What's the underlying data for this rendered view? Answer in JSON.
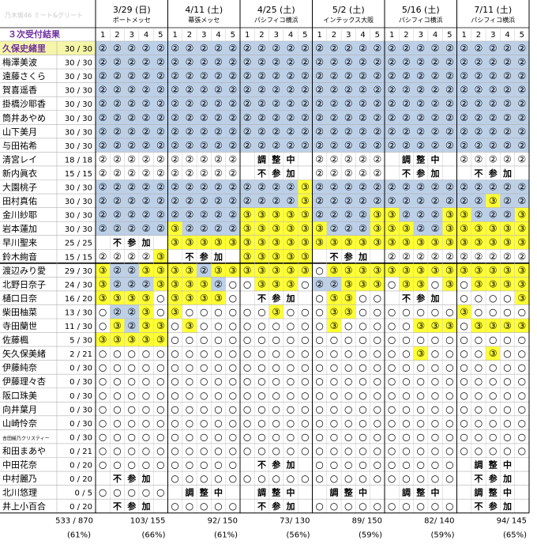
{
  "header": {
    "corner_text": "乃木坂46 ミート&グリート",
    "title": "３次受付結果",
    "slot_labels": [
      "1",
      "2",
      "3",
      "4",
      "5"
    ]
  },
  "events": [
    {
      "date": "3/29 (日)",
      "venue": "ポートメッセ",
      "sum": "103/ 155",
      "pct": "(66%)"
    },
    {
      "date": "4/11 (土)",
      "venue": "幕張メッセ",
      "sum": "92/ 150",
      "pct": "(61%)"
    },
    {
      "date": "4/25 (土)",
      "venue": "パシフィコ横浜",
      "sum": "73/ 130",
      "pct": "(56%)"
    },
    {
      "date": "5/2 (土)",
      "venue": "インテックス大阪",
      "sum": "89/ 150",
      "pct": "(59%)"
    },
    {
      "date": "5/16 (土)",
      "venue": "パシフィコ横浜",
      "sum": "82/ 140",
      "pct": "(59%)"
    },
    {
      "date": "7/11 (土)",
      "venue": "パシフィコ横浜",
      "sum": "94/ 145",
      "pct": "(65%)"
    }
  ],
  "totals": {
    "sum": "533 / 870",
    "pct": "(61%)"
  },
  "legend": {
    "sold_out_2": "②",
    "sold_out_3": "③",
    "open": "○",
    "absent_chars": [
      "不",
      "参",
      "加"
    ],
    "adjusting_chars": [
      "調",
      "整",
      "中"
    ]
  },
  "colors": {
    "blue_cell": "#bcd0e8",
    "yellow_cell": "#ffff33",
    "name_highlight": "#f6f6a8",
    "purple_title": "#7030a0"
  },
  "members": [
    {
      "name": "久保史緒里",
      "score": "30 / 30",
      "highlight": true,
      "cells": [
        "B2B2B2B2B2",
        "B2B2B2B2B2",
        "B2B2B2B2B2",
        "B2B2B2B2B2",
        "B2B2B2B2B2",
        "B2B2B2B2B2"
      ]
    },
    {
      "name": "梅澤美波",
      "score": "30 / 30",
      "cells": [
        "B2B2B2B2B2",
        "B2B2B2B2B2",
        "B2B2B2B2B2",
        "B2B2B2B2B2",
        "B2B2B2B2B2",
        "B2B2B2B2B2"
      ]
    },
    {
      "name": "遠藤さくら",
      "score": "30 / 30",
      "cells": [
        "B2B2B2B2B2",
        "B2B2B2B2B2",
        "B2B2B2B2B2",
        "B2B2B2B2B2",
        "B2B2B2B2B2",
        "B2B2B2B2B2"
      ]
    },
    {
      "name": "賀喜遥香",
      "score": "30 / 30",
      "cells": [
        "B2B2B2B2B2",
        "B2B2B2B2B2",
        "B2B2B2B2B2",
        "B2B2B2B2B2",
        "B2B2B2B2B2",
        "B2B2B2B2B2"
      ]
    },
    {
      "name": "掛橋沙耶香",
      "score": "30 / 30",
      "cells": [
        "B2B2B2B2B2",
        "B2B2B2B2B2",
        "B2B2B2B2B2",
        "B2B2B2B2B2",
        "B2B2B2B2B2",
        "B2B2B2B2B2"
      ]
    },
    {
      "name": "筒井あやめ",
      "score": "30 / 30",
      "cells": [
        "B2B2B2B2B2",
        "B2B2B2B2B2",
        "B2B2B2B2B2",
        "B2B2B2B2B2",
        "B2B2B2B2B2",
        "B2B2B2B2B2"
      ]
    },
    {
      "name": "山下美月",
      "score": "30 / 30",
      "cells": [
        "B2B2B2B2B2",
        "B2B2B2B2B2",
        "B2B2B2B2B2",
        "B2B2B2B2B2",
        "B2B2B2B2B2",
        "B2B2B2B2B2"
      ]
    },
    {
      "name": "与田祐希",
      "score": "30 / 30",
      "cells": [
        "B2B2B2B2B2",
        "B2B2B2B2B2",
        "B2B2B2B2B2",
        "B2B2B2B2B2",
        "B2B2B2B2B2",
        "B2B2B2B2B2"
      ]
    },
    {
      "name": "清宮レイ",
      "score": "18 / 18",
      "cells": [
        "W2W2W2W2W2",
        "W2W2W2W2W2",
        "-- -- 調 整 中",
        "W2W2W2W2W2",
        "-- -- 調 整 中",
        "W2W2W2W2W2"
      ]
    },
    {
      "name": "新内眞衣",
      "score": "15 / 15",
      "cells": [
        "W2W2W2W2W2",
        "W2W2W2W2W2",
        "-- -- 不 参 加",
        "W2W2W2W2W2",
        "-- -- 不 参 加",
        "-- -- 不 参 加"
      ]
    },
    {
      "name": "大園桃子",
      "score": "30 / 30",
      "cells": [
        "B2B2B2B2B2",
        "B2B2B2B2B2",
        "B2B2B2B2Y3",
        "B2B2B2B2B2",
        "B2B2B2B2B2",
        "B2B2B2B2B2"
      ]
    },
    {
      "name": "田村真佑",
      "score": "30 / 30",
      "cells": [
        "B2B2B2B2B2",
        "B2B2B2B2B2",
        "B2B2B2B2Y3",
        "B2B2B2B2B2",
        "B2B2B2B2B2",
        "B2B2Y3B2B2"
      ]
    },
    {
      "name": "金川紗耶",
      "score": "30 / 30",
      "cells": [
        "B2B2B2B2B2",
        "B2B2B2B2B2",
        "Y3Y3Y3Y3Y3",
        "B2B2B2B2Y3",
        "Y3B2B2B2Y3",
        "Y3B2B2B2Y3"
      ]
    },
    {
      "name": "岩本蓮加",
      "score": "30 / 30",
      "cells": [
        "B2B2B2B2B2",
        "Y3B2B2B2B2",
        "Y3Y3Y3Y3Y3",
        "Y3B2B2B2Y3",
        "Y3Y3B2B2Y3",
        "Y3Y3Y3Y3Y3"
      ]
    },
    {
      "name": "早川聖来",
      "score": "25 / 25",
      "cells": [
        "-- -- 不 参 加",
        "Y3Y3Y3Y3Y3",
        "Y3Y3Y3Y3Y3",
        "Y3Y3Y3Y3Y3",
        "Y3Y3Y3Y3Y3",
        "Y3Y3Y3Y3Y3"
      ]
    },
    {
      "name": "鈴木絢音",
      "score": "15 / 15",
      "cells": [
        "W2W2W2W2Y3",
        "-- -- 不 参 加",
        "Y3Y3Y3Y3Y3",
        "-- -- 不 参 加",
        "W2W2W2W2W2",
        "W2W2W2W2W2"
      ]
    },
    {
      "name": "渡辺みり愛",
      "score": "29 / 30",
      "separator": true,
      "cells": [
        "Y3B2B2Y3Y3",
        "Y3Y3B2Y3Y3",
        "Y3Y3Y3Y3Y3",
        "OOY3Y3Y3Y3",
        "Y3Y3Y3Y3Y3",
        "Y3Y3Y3Y3Y3"
      ]
    },
    {
      "name": "北野日奈子",
      "score": "24 / 30",
      "cells": [
        "Y3B2B2B2Y3",
        "Y3Y3Y3B2OO",
        "OOY3Y3Y3OO",
        "B2B2Y3Y3Y3",
        "OOY3Y3OOY3",
        "OOY3Y3Y3Y3"
      ]
    },
    {
      "name": "樋口日奈",
      "score": "16 / 20",
      "cells": [
        "Y3Y3Y3Y3OO",
        "Y3Y3Y3Y3OO",
        "-- -- 不 参 加",
        "OOY3Y3OOOO",
        "-- -- 不 参 加",
        "OOOOOOOOY3"
      ]
    },
    {
      "name": "柴田柚菜",
      "score": "13 / 30",
      "cells": [
        "OOB2B2Y3OO",
        "Y3OOOOOOOO",
        "OOOOY3OOOO",
        "OOY3Y3OOOO",
        "OOOOOOOOOO",
        "Y3OOOOOOOO"
      ]
    },
    {
      "name": "寺田蘭世",
      "score": "11 / 30",
      "cells": [
        "OOY3B2Y3Y3",
        "OOY3OOOOOO",
        "OOOOOOOOOO",
        "OOY3OOOOOO",
        "OOOOY3Y3Y3",
        "OOY3Y3Y3Y3"
      ]
    },
    {
      "name": "佐藤楓",
      "score": "5 / 30",
      "cells": [
        "Y3Y3Y3Y3Y3",
        "OOOOOOOOOO",
        "OOOOOOOOOO",
        "OOOOOOOOOO",
        "OOOOOOOOOO",
        "OOOOOOOOOO"
      ]
    },
    {
      "name": "矢久保美緒",
      "score": "2 / 21",
      "cells": [
        "OOOOOOOOOO",
        "OOOOOOOOOO",
        "OOOOOOOOOO",
        "OOOOOOOOOO",
        "OOOOY3OOOO",
        "OOOOY3OOOO"
      ]
    },
    {
      "name": "伊藤純奈",
      "score": "0 / 30",
      "cells": [
        "OOOOOOOOOO",
        "OOOOOOOOOO",
        "OOOOOOOOOO",
        "OOOOOOOOOO",
        "OOOOOOOOOO",
        "OOOOOOOOOO"
      ]
    },
    {
      "name": "伊藤理々杏",
      "score": "0 / 30",
      "cells": [
        "OOOOOOOOOO",
        "OOOOOOOOOO",
        "OOOOOOOOOO",
        "OOOOOOOOOO",
        "OOOOOOOOOO",
        "OOOOOOOOOO"
      ]
    },
    {
      "name": "阪口珠美",
      "score": "0 / 30",
      "cells": [
        "OOOOOOOOOO",
        "OOOOOOOOOO",
        "OOOOOOOOOO",
        "OOOOOOOOOO",
        "OOOOOOOOOO",
        "OOOOOOOOOO"
      ]
    },
    {
      "name": "向井葉月",
      "score": "0 / 30",
      "cells": [
        "OOOOOOOOOO",
        "OOOOOOOOOO",
        "OOOOOOOOOO",
        "OOOOOOOOOO",
        "OOOOOOOOOO",
        "OOOOOOOOOO"
      ]
    },
    {
      "name": "山崎怜奈",
      "score": "0 / 30",
      "cells": [
        "OOOOOOOOOO",
        "OOOOOOOOOO",
        "OOOOOOOOOO",
        "OOOOOOOOOO",
        "OOOOOOOOOO",
        "OOOOOOOOOO"
      ]
    },
    {
      "name": "吉田綾乃クリスティー",
      "score": "0 / 30",
      "small": true,
      "cells": [
        "OOOOOOOOOO",
        "OOOOOOOOOO",
        "OOOOOOOOOO",
        "OOOOOOOOOO",
        "OOOOOOOOOO",
        "OOOOOOOOOO"
      ]
    },
    {
      "name": "和田まあや",
      "score": "0 / 21",
      "cells": [
        "OOOOOOOOOO",
        "OOOOOOOOOO",
        "OOOOOOOOOO",
        "OOOOOOOOOO",
        "OOOOOOOOOO",
        "OOOOOOOOOO"
      ]
    },
    {
      "name": "中田花奈",
      "score": "0 / 20",
      "cells": [
        "OOOOOOOOOO",
        "OOOOOOOOOO",
        "-- -- 不 参 加",
        "OOOOOOOOOO",
        "OOOOOOOOOO",
        "-- -- 調 整 中"
      ]
    },
    {
      "name": "中村麗乃",
      "score": "0 / 20",
      "cells": [
        "-- -- 不 参 加",
        "OOOOOOOOOO",
        "OOOOOOOOOO",
        "OOOOOOOOOO",
        "OOOOOOOOOO",
        "-- -- 不 参 加"
      ]
    },
    {
      "name": "北川悠理",
      "score": "0 / 5",
      "cells": [
        "OOOOOOOOOO",
        "-- -- 調 整 中",
        "-- -- 調 整 中",
        "-- -- 調 整 中",
        "-- -- 調 整 中",
        "-- -- 調 整 中"
      ]
    },
    {
      "name": "井上小百合",
      "score": "0 / 20",
      "cells": [
        "-- -- 不 参 加",
        "OOOOOOOOOO",
        "-- -- 不 参 加",
        "OOOOOOOOOO",
        "OOOOOOOOOO",
        "-- -- 不 参 加"
      ]
    }
  ]
}
